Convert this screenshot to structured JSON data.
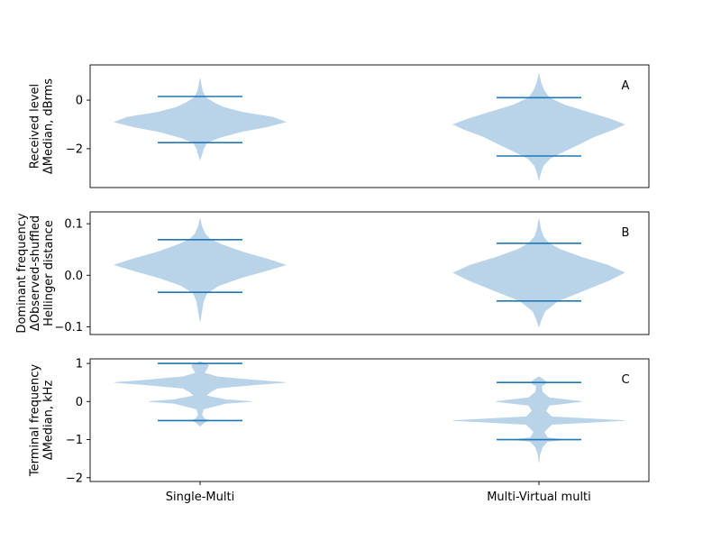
{
  "chart_data": [
    {
      "type": "violin",
      "panel_label": "A",
      "ylabel_lines": [
        "Received level",
        "ΔMedian, dBrms"
      ],
      "ylim": [
        -3.6,
        1.45
      ],
      "yticks": [
        -2,
        0
      ],
      "ytick_labels": [
        "−2",
        "0"
      ],
      "categories": [
        "Single-Multi",
        "Multi-Virtual multi"
      ],
      "show_xticks": false,
      "violins": [
        {
          "category": "Single-Multi",
          "min": -1.75,
          "max": 0.15,
          "profile": [
            [
              -2.45,
              0.0
            ],
            [
              -2.25,
              0.02
            ],
            [
              -2.0,
              0.04
            ],
            [
              -1.75,
              0.08
            ],
            [
              -1.55,
              0.22
            ],
            [
              -1.3,
              0.48
            ],
            [
              -1.1,
              0.78
            ],
            [
              -0.9,
              1.0
            ],
            [
              -0.7,
              0.85
            ],
            [
              -0.5,
              0.5
            ],
            [
              -0.3,
              0.28
            ],
            [
              -0.1,
              0.16
            ],
            [
              0.1,
              0.07
            ],
            [
              0.35,
              0.03
            ],
            [
              0.6,
              0.015
            ],
            [
              0.9,
              0.0
            ]
          ]
        },
        {
          "category": "Multi-Virtual multi",
          "min": -2.3,
          "max": 0.1,
          "profile": [
            [
              -3.3,
              0.0
            ],
            [
              -3.0,
              0.02
            ],
            [
              -2.7,
              0.05
            ],
            [
              -2.4,
              0.13
            ],
            [
              -2.1,
              0.3
            ],
            [
              -1.8,
              0.48
            ],
            [
              -1.5,
              0.65
            ],
            [
              -1.2,
              0.88
            ],
            [
              -1.0,
              1.0
            ],
            [
              -0.8,
              0.85
            ],
            [
              -0.5,
              0.58
            ],
            [
              -0.2,
              0.3
            ],
            [
              0.1,
              0.12
            ],
            [
              0.4,
              0.06
            ],
            [
              0.7,
              0.025
            ],
            [
              1.1,
              0.0
            ]
          ]
        }
      ]
    },
    {
      "type": "violin",
      "panel_label": "B",
      "ylabel_lines": [
        "Dominant frequency",
        "ΔObserved-shuffled",
        "Hellinger distance"
      ],
      "ylim": [
        -0.115,
        0.123
      ],
      "yticks": [
        -0.1,
        0.0,
        0.1
      ],
      "ytick_labels": [
        "−0.1",
        "0.0",
        "0.1"
      ],
      "categories": [
        "Single-Multi",
        "Multi-Virtual multi"
      ],
      "show_xticks": false,
      "violins": [
        {
          "category": "Single-Multi",
          "min": -0.033,
          "max": 0.069,
          "profile": [
            [
              -0.09,
              0.0
            ],
            [
              -0.07,
              0.02
            ],
            [
              -0.05,
              0.04
            ],
            [
              -0.035,
              0.08
            ],
            [
              -0.02,
              0.22
            ],
            [
              -0.005,
              0.48
            ],
            [
              0.01,
              0.8
            ],
            [
              0.02,
              1.0
            ],
            [
              0.03,
              0.82
            ],
            [
              0.045,
              0.5
            ],
            [
              0.06,
              0.25
            ],
            [
              0.07,
              0.12
            ],
            [
              0.08,
              0.06
            ],
            [
              0.095,
              0.02
            ],
            [
              0.11,
              0.0
            ]
          ]
        },
        {
          "category": "Multi-Virtual multi",
          "min": -0.05,
          "max": 0.062,
          "profile": [
            [
              -0.1,
              0.0
            ],
            [
              -0.085,
              0.03
            ],
            [
              -0.07,
              0.07
            ],
            [
              -0.05,
              0.22
            ],
            [
              -0.03,
              0.52
            ],
            [
              -0.01,
              0.82
            ],
            [
              0.005,
              1.0
            ],
            [
              0.02,
              0.8
            ],
            [
              0.035,
              0.5
            ],
            [
              0.05,
              0.25
            ],
            [
              0.062,
              0.12
            ],
            [
              0.075,
              0.05
            ],
            [
              0.09,
              0.02
            ],
            [
              0.11,
              0.0
            ]
          ]
        }
      ]
    },
    {
      "type": "violin",
      "panel_label": "C",
      "ylabel_lines": [
        "Terminal frequency",
        "ΔMedian, kHz"
      ],
      "ylim": [
        -2.1,
        1.12
      ],
      "yticks": [
        -2,
        -1,
        0,
        1
      ],
      "ytick_labels": [
        "−2",
        "−1",
        "0",
        "1"
      ],
      "categories": [
        "Single-Multi",
        "Multi-Virtual multi"
      ],
      "show_xticks": true,
      "violins": [
        {
          "category": "Single-Multi",
          "min": -0.5,
          "max": 1.0,
          "profile": [
            [
              -0.65,
              0.0
            ],
            [
              -0.55,
              0.05
            ],
            [
              -0.5,
              0.1
            ],
            [
              -0.45,
              0.05
            ],
            [
              -0.35,
              0.02
            ],
            [
              -0.2,
              0.04
            ],
            [
              -0.05,
              0.3
            ],
            [
              0.0,
              0.6
            ],
            [
              0.05,
              0.3
            ],
            [
              0.15,
              0.07
            ],
            [
              0.25,
              0.12
            ],
            [
              0.35,
              0.2
            ],
            [
              0.45,
              0.7
            ],
            [
              0.5,
              1.0
            ],
            [
              0.55,
              0.7
            ],
            [
              0.65,
              0.2
            ],
            [
              0.75,
              0.05
            ],
            [
              0.85,
              0.08
            ],
            [
              0.95,
              0.1
            ],
            [
              1.05,
              0.0
            ]
          ]
        },
        {
          "category": "Multi-Virtual multi",
          "min": -1.0,
          "max": 0.5,
          "profile": [
            [
              -1.6,
              0.0
            ],
            [
              -1.4,
              0.01
            ],
            [
              -1.2,
              0.04
            ],
            [
              -1.05,
              0.1
            ],
            [
              -1.0,
              0.3
            ],
            [
              -0.95,
              0.1
            ],
            [
              -0.8,
              0.06
            ],
            [
              -0.6,
              0.15
            ],
            [
              -0.5,
              1.0
            ],
            [
              -0.4,
              0.15
            ],
            [
              -0.25,
              0.08
            ],
            [
              -0.1,
              0.12
            ],
            [
              0.0,
              0.5
            ],
            [
              0.1,
              0.12
            ],
            [
              0.25,
              0.04
            ],
            [
              0.4,
              0.03
            ],
            [
              0.5,
              0.1
            ],
            [
              0.6,
              0.04
            ],
            [
              0.65,
              0.0
            ]
          ]
        }
      ]
    }
  ]
}
